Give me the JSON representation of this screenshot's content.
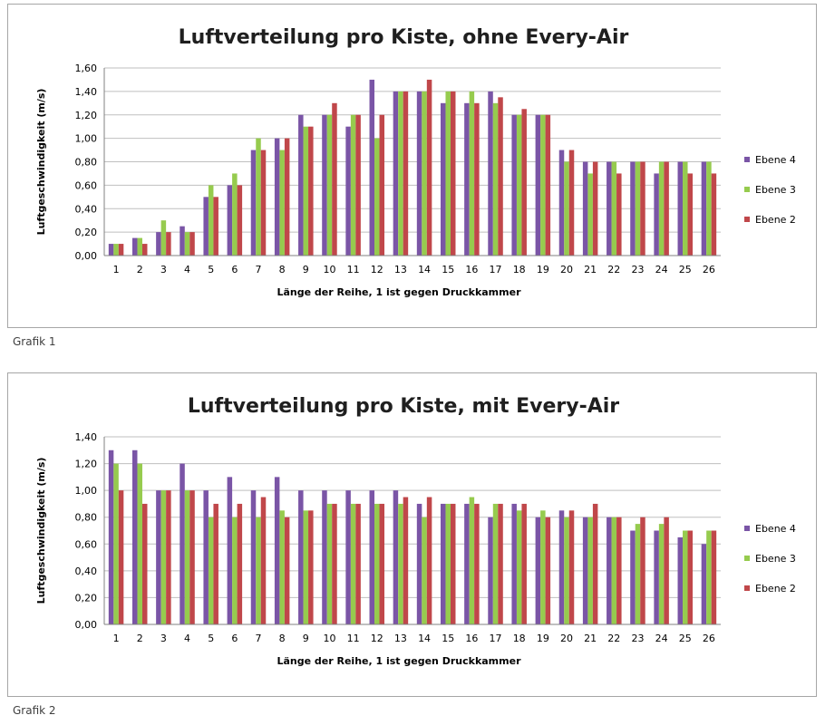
{
  "chart_data": [
    {
      "type": "bar",
      "title": "Luftverteilung pro Kiste, ohne Every-Air",
      "xlabel": "Länge der Reihe, 1 ist gegen Druckkammer",
      "ylabel": "Luftgeschwindigkeit  (m/s)",
      "ylim": [
        0,
        1.6
      ],
      "y_ticks": [
        "0,00",
        "0,20",
        "0,40",
        "0,60",
        "0,80",
        "1,00",
        "1,20",
        "1,40",
        "1,60"
      ],
      "categories": [
        "1",
        "2",
        "3",
        "4",
        "5",
        "6",
        "7",
        "8",
        "9",
        "10",
        "11",
        "12",
        "13",
        "14",
        "15",
        "16",
        "17",
        "18",
        "19",
        "20",
        "21",
        "22",
        "23",
        "24",
        "25",
        "26"
      ],
      "series": [
        {
          "name": "Ebene 4",
          "color": "#7a55a6",
          "values": [
            0.1,
            0.15,
            0.2,
            0.25,
            0.5,
            0.6,
            0.9,
            1.0,
            1.2,
            1.2,
            1.1,
            1.5,
            1.4,
            1.4,
            1.3,
            1.3,
            1.4,
            1.2,
            1.2,
            0.9,
            0.8,
            0.8,
            0.8,
            0.7,
            0.8,
            0.8
          ]
        },
        {
          "name": "Ebene 3",
          "color": "#96cb4e",
          "values": [
            0.1,
            0.15,
            0.3,
            0.2,
            0.6,
            0.7,
            1.0,
            0.9,
            1.1,
            1.2,
            1.2,
            1.0,
            1.4,
            1.4,
            1.4,
            1.4,
            1.3,
            1.2,
            1.2,
            0.8,
            0.7,
            0.8,
            0.8,
            0.8,
            0.8,
            0.8
          ]
        },
        {
          "name": "Ebene 2",
          "color": "#c0474a",
          "values": [
            0.1,
            0.1,
            0.2,
            0.2,
            0.5,
            0.6,
            0.9,
            1.0,
            1.1,
            1.3,
            1.2,
            1.2,
            1.4,
            1.5,
            1.4,
            1.3,
            1.35,
            1.25,
            1.2,
            0.9,
            0.8,
            0.7,
            0.8,
            0.8,
            0.7,
            0.7
          ]
        }
      ],
      "caption": "Grafik 1"
    },
    {
      "type": "bar",
      "title": "Luftverteilung pro Kiste, mit Every-Air",
      "xlabel": "Länge der Reihe, 1 ist gegen Druckkammer",
      "ylabel": "Luftgeschwindigkeit  (m/s)",
      "ylim": [
        0,
        1.4
      ],
      "y_ticks": [
        "0,00",
        "0,20",
        "0,40",
        "0,60",
        "0,80",
        "1,00",
        "1,20",
        "1,40"
      ],
      "categories": [
        "1",
        "2",
        "3",
        "4",
        "5",
        "6",
        "7",
        "8",
        "9",
        "10",
        "11",
        "12",
        "13",
        "14",
        "15",
        "16",
        "17",
        "18",
        "19",
        "20",
        "21",
        "22",
        "23",
        "24",
        "25",
        "26"
      ],
      "series": [
        {
          "name": "Ebene 4",
          "color": "#7a55a6",
          "values": [
            1.3,
            1.3,
            1.0,
            1.2,
            1.0,
            1.1,
            1.0,
            1.1,
            1.0,
            1.0,
            1.0,
            1.0,
            1.0,
            0.9,
            0.9,
            0.9,
            0.8,
            0.9,
            0.8,
            0.85,
            0.8,
            0.8,
            0.7,
            0.7,
            0.65,
            0.6
          ]
        },
        {
          "name": "Ebene 3",
          "color": "#96cb4e",
          "values": [
            1.2,
            1.2,
            1.0,
            1.0,
            0.8,
            0.8,
            0.8,
            0.85,
            0.85,
            0.9,
            0.9,
            0.9,
            0.9,
            0.8,
            0.9,
            0.95,
            0.9,
            0.85,
            0.85,
            0.8,
            0.8,
            0.8,
            0.75,
            0.75,
            0.7,
            0.7
          ]
        },
        {
          "name": "Ebene 2",
          "color": "#c0474a",
          "values": [
            1.0,
            0.9,
            1.0,
            1.0,
            0.9,
            0.9,
            0.95,
            0.8,
            0.85,
            0.9,
            0.9,
            0.9,
            0.95,
            0.95,
            0.9,
            0.9,
            0.9,
            0.9,
            0.8,
            0.85,
            0.9,
            0.8,
            0.8,
            0.8,
            0.7,
            0.7
          ]
        }
      ],
      "caption": "Grafik 2"
    }
  ]
}
